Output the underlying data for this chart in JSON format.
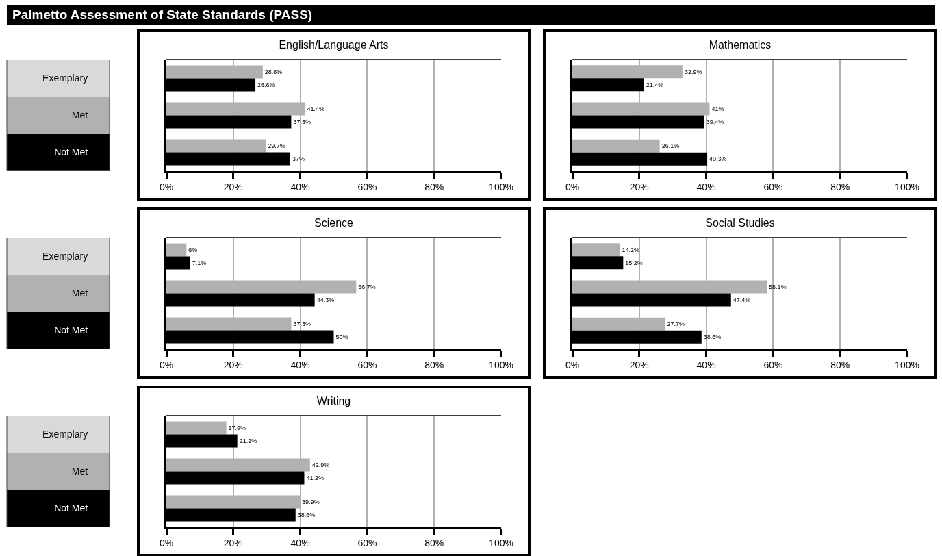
{
  "chart_data": [
    {
      "type": "bar",
      "orientation": "horizontal",
      "title": "English/Language Arts",
      "annotations": [
        "Palmetto Assessment of State Standards (PASS)"
      ],
      "categories": [
        "Exemplary",
        "Met",
        "Not Met"
      ],
      "xlim": [
        0,
        100
      ],
      "xticks": [
        {
          "value": 0,
          "label": "0%"
        },
        {
          "value": 20,
          "label": "20%"
        },
        {
          "value": 40,
          "label": "40%"
        },
        {
          "value": 60,
          "label": "60%"
        },
        {
          "value": 80,
          "label": "80%"
        },
        {
          "value": 100,
          "label": "100%"
        }
      ],
      "grid": "x",
      "series": [
        {
          "color": "#b1b1b4",
          "values": [
            28.8,
            41.4,
            29.7
          ],
          "value_labels": [
            "28.8%",
            "41.4%",
            "29.7%"
          ]
        },
        {
          "color": "#000000",
          "values": [
            26.6,
            37.3,
            37
          ],
          "value_labels": [
            "26.6%",
            "37.3%",
            "37%"
          ]
        }
      ]
    },
    {
      "type": "bar",
      "orientation": "horizontal",
      "title": "Mathematics",
      "categories": [
        null,
        null,
        null
      ],
      "xlim": [
        0,
        100
      ],
      "xticks": [
        {
          "value": 0,
          "label": "0%"
        },
        {
          "value": 20,
          "label": "20%"
        },
        {
          "value": 40,
          "label": "40%"
        },
        {
          "value": 60,
          "label": "60%"
        },
        {
          "value": 80,
          "label": "80%"
        },
        {
          "value": 100,
          "label": "100%"
        }
      ],
      "grid": "x",
      "tick_labels": "x",
      "series": [
        {
          "color": "#b1b1b4",
          "values": [
            32.9,
            41,
            26.1
          ],
          "value_labels": [
            "32.9%",
            "41%",
            "26.1%"
          ]
        },
        {
          "color": "#000000",
          "values": [
            21.4,
            39.4,
            40.3
          ],
          "value_labels": [
            "21.4%",
            "39.4%",
            "40.3%"
          ]
        }
      ]
    },
    {
      "type": "bar",
      "orientation": "horizontal",
      "title": "Science",
      "categories": [
        "Exemplary",
        "Met",
        "Not Met"
      ],
      "xlim": [
        0,
        100
      ],
      "xticks": [
        {
          "value": 0,
          "label": "0%"
        },
        {
          "value": 20,
          "label": "20%"
        },
        {
          "value": 40,
          "label": "40%"
        },
        {
          "value": 60,
          "label": "60%"
        },
        {
          "value": 80,
          "label": "80%"
        },
        {
          "value": 100,
          "label": "100%"
        }
      ],
      "grid": "x",
      "series": [
        {
          "color": "#b1b1b4",
          "values": [
            6,
            56.7,
            37.3
          ],
          "value_labels": [
            "6%",
            "56.7%",
            "37.3%"
          ]
        },
        {
          "color": "#000000",
          "values": [
            7.1,
            44.3,
            50
          ],
          "value_labels": [
            "7.1%",
            "44.3%",
            "50%"
          ]
        }
      ]
    },
    {
      "type": "bar",
      "orientation": "horizontal",
      "title": "Social Studies",
      "categories": [
        null,
        null,
        null
      ],
      "xlim": [
        0,
        100
      ],
      "xticks": [
        {
          "value": 0,
          "label": "0%"
        },
        {
          "value": 20,
          "label": "20%"
        },
        {
          "value": 40,
          "label": "40%"
        },
        {
          "value": 60,
          "label": "60%"
        },
        {
          "value": 80,
          "label": "80%"
        },
        {
          "value": 100,
          "label": "100%"
        }
      ],
      "grid": "x",
      "tick_labels": "x",
      "series": [
        {
          "color": "#b1b1b4",
          "values": [
            14.2,
            58.1,
            27.7
          ],
          "value_labels": [
            "14.2%",
            "58.1%",
            "27.7%"
          ]
        },
        {
          "color": "#000000",
          "values": [
            15.2,
            47.4,
            38.6
          ],
          "value_labels": [
            "15.2%",
            "47.4%",
            "38.6%"
          ]
        }
      ]
    },
    {
      "type": "bar",
      "orientation": "horizontal",
      "title": "Writing",
      "categories": [
        "Exemplary",
        "Met",
        "Not Met"
      ],
      "xlim": [
        0,
        100
      ],
      "xticks": [
        {
          "value": 0,
          "label": "0%"
        },
        {
          "value": 20,
          "label": "20%"
        },
        {
          "value": 40,
          "label": "40%"
        },
        {
          "value": 60,
          "label": "60%"
        },
        {
          "value": 80,
          "label": "80%"
        },
        {
          "value": 100,
          "label": "100%"
        }
      ],
      "grid": "x",
      "series": [
        {
          "color": "#b1b1b4",
          "values": [
            17.9,
            42.9,
            39.9
          ],
          "value_labels": [
            "17.9%",
            "42.9%",
            "39.9%"
          ]
        },
        {
          "color": "#000000",
          "values": [
            21.2,
            41.2,
            38.6
          ],
          "value_labels": [
            "21.2%",
            "41.2%",
            "38.6%"
          ]
        }
      ]
    }
  ]
}
